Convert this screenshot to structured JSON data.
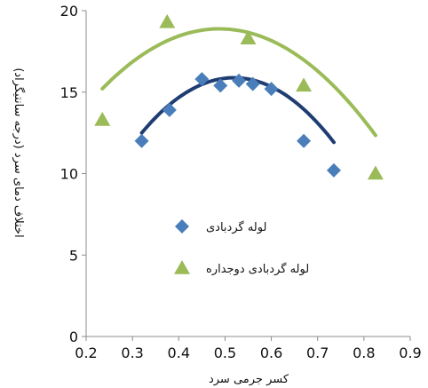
{
  "chart_data": {
    "type": "scatter",
    "title": "",
    "xlabel": "کسر جرمی سرد",
    "ylabel": "اختلاف دمای سرد (درجه سانتیگراد)",
    "xlim": [
      0.2,
      0.9
    ],
    "ylim": [
      0,
      20
    ],
    "x_ticks": [
      "0.2",
      "0.3",
      "0.4",
      "0.5",
      "0.6",
      "0.7",
      "0.8",
      "0.9"
    ],
    "y_ticks": [
      "0",
      "5",
      "10",
      "15",
      "20"
    ],
    "grid": false,
    "legend_position": "center-right",
    "series": [
      {
        "name": "لوله گردبادی",
        "marker": "diamond",
        "color": "#4a7ebb",
        "trend_color": "#1f3d73",
        "points": [
          {
            "x": 0.32,
            "y": 12.0
          },
          {
            "x": 0.38,
            "y": 13.9
          },
          {
            "x": 0.45,
            "y": 15.8
          },
          {
            "x": 0.49,
            "y": 15.4
          },
          {
            "x": 0.53,
            "y": 15.7
          },
          {
            "x": 0.56,
            "y": 15.5
          },
          {
            "x": 0.6,
            "y": 15.2
          },
          {
            "x": 0.67,
            "y": 12.0
          },
          {
            "x": 0.735,
            "y": 10.2
          }
        ],
        "trend": [
          -85.2,
          88.5,
          -7.1
        ]
      },
      {
        "name": "لوله گردبادی  دوجداره",
        "marker": "triangle",
        "color": "#9bbb59",
        "trend_color": "#9bbb59",
        "points": [
          {
            "x": 0.235,
            "y": 13.3
          },
          {
            "x": 0.375,
            "y": 19.3
          },
          {
            "x": 0.55,
            "y": 18.3
          },
          {
            "x": 0.67,
            "y": 15.4
          },
          {
            "x": 0.825,
            "y": 10.0
          }
        ],
        "trend": [
          -57.5,
          56.1,
          5.2
        ]
      }
    ]
  }
}
